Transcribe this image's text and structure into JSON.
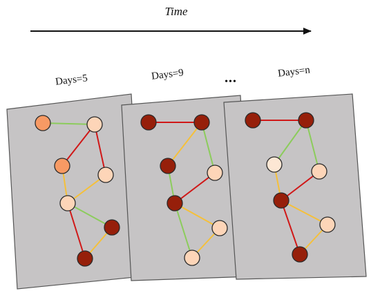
{
  "header": {
    "time_label": "Time",
    "ellipsis": "•••"
  },
  "colors": {
    "panel_fill": "#c6c4c5",
    "edge_red": "#d01818",
    "edge_yellow": "#f5c03a",
    "edge_green": "#8ccc5c",
    "node_light": "#fdd5b8",
    "node_lightest": "#fde7d4",
    "node_medium": "#f79a64",
    "node_dark": "#961f0a"
  },
  "panels": [
    {
      "id": "days-5",
      "label": "Days=5",
      "node_colors": [
        "#f79a64",
        "#fdd5b8",
        "#f79a64",
        "#fdd5b8",
        "#fdd5b8",
        "#961f0a",
        "#961f0a"
      ],
      "edges": [
        {
          "from": 0,
          "to": 1,
          "kind": "green"
        },
        {
          "from": 1,
          "to": 2,
          "kind": "red"
        },
        {
          "from": 1,
          "to": 3,
          "kind": "red"
        },
        {
          "from": 2,
          "to": 4,
          "kind": "yellow"
        },
        {
          "from": 3,
          "to": 4,
          "kind": "yellow"
        },
        {
          "from": 4,
          "to": 5,
          "kind": "green"
        },
        {
          "from": 4,
          "to": 6,
          "kind": "red"
        },
        {
          "from": 5,
          "to": 6,
          "kind": "yellow"
        }
      ]
    },
    {
      "id": "days-9",
      "label": "Days=9",
      "node_colors": [
        "#961f0a",
        "#961f0a",
        "#961f0a",
        "#fdd5b8",
        "#961f0a",
        "#fdd5b8",
        "#fdd5b8"
      ],
      "edges": [
        {
          "from": 0,
          "to": 1,
          "kind": "red"
        },
        {
          "from": 1,
          "to": 2,
          "kind": "yellow"
        },
        {
          "from": 1,
          "to": 3,
          "kind": "green"
        },
        {
          "from": 2,
          "to": 4,
          "kind": "green"
        },
        {
          "from": 3,
          "to": 4,
          "kind": "red"
        },
        {
          "from": 4,
          "to": 5,
          "kind": "yellow"
        },
        {
          "from": 4,
          "to": 6,
          "kind": "green"
        },
        {
          "from": 5,
          "to": 6,
          "kind": "yellow"
        }
      ]
    },
    {
      "id": "days-n",
      "label": "Days=n",
      "node_colors": [
        "#961f0a",
        "#961f0a",
        "#fde7d4",
        "#fdd5b8",
        "#961f0a",
        "#fdd5b8",
        "#961f0a"
      ],
      "edges": [
        {
          "from": 0,
          "to": 1,
          "kind": "red"
        },
        {
          "from": 1,
          "to": 2,
          "kind": "green"
        },
        {
          "from": 1,
          "to": 3,
          "kind": "green"
        },
        {
          "from": 2,
          "to": 4,
          "kind": "yellow"
        },
        {
          "from": 3,
          "to": 4,
          "kind": "red"
        },
        {
          "from": 4,
          "to": 5,
          "kind": "yellow"
        },
        {
          "from": 4,
          "to": 6,
          "kind": "red"
        },
        {
          "from": 5,
          "to": 6,
          "kind": "yellow"
        }
      ]
    }
  ]
}
